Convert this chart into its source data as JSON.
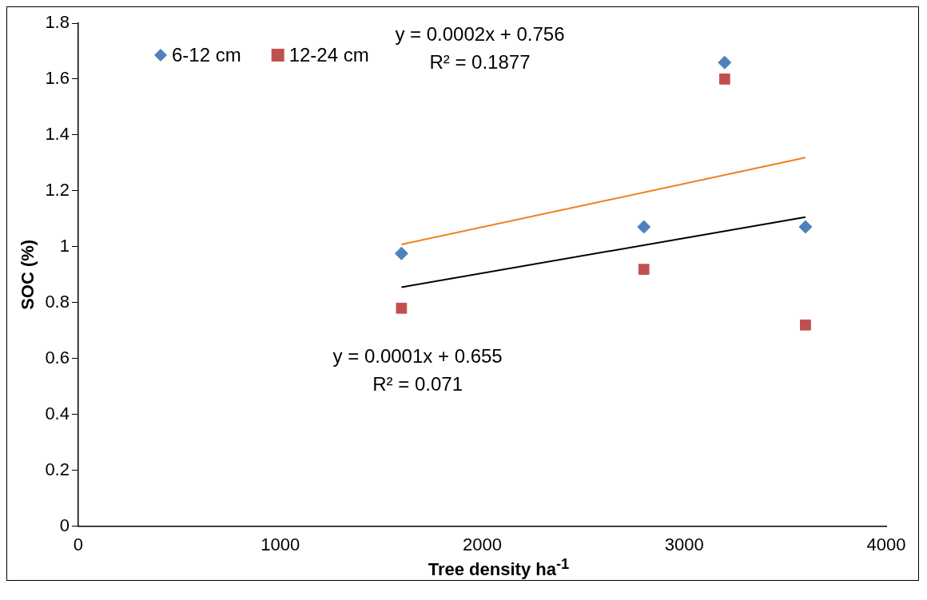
{
  "chart_data": {
    "type": "scatter",
    "xlabel": "Tree density ha$^{-1}$",
    "ylabel": "SOC (%)",
    "xlim": [
      0,
      4000
    ],
    "xticks": [
      0,
      1000,
      2000,
      3000,
      4000
    ],
    "ylim": [
      0,
      1.8
    ],
    "yticks": [
      0,
      0.2,
      0.4,
      0.6,
      0.8,
      1,
      1.2,
      1.4,
      1.6,
      1.8
    ],
    "grid": false,
    "legend": "top left",
    "series": [
      {
        "name": "6-12 cm",
        "color": "#4f81bd",
        "marker": "diamond",
        "x": [
          1600,
          2800,
          3200,
          3600
        ],
        "values": [
          0.976,
          1.071,
          1.659,
          1.071
        ]
      },
      {
        "name": "12-24 cm",
        "color": "#c0504d",
        "marker": "square",
        "x": [
          1600,
          2800,
          3200,
          3600
        ],
        "values": [
          0.78,
          0.919,
          1.6,
          0.72
        ]
      },
      {
        "type": "line",
        "color": "#f07f1a",
        "marker": "none",
        "line_style": "solid",
        "x": [
          1600,
          3600
        ],
        "values": [
          1.008,
          1.319
        ]
      },
      {
        "type": "line",
        "color": "#000000",
        "marker": "none",
        "line_style": "solid",
        "x": [
          1600,
          3600
        ],
        "values": [
          0.855,
          1.106
        ]
      }
    ],
    "annotations": [
      "y = 0.0002x + 0.756",
      "R² = 0.1877",
      "y = 0.0001x + 0.655",
      "R² = 0.071"
    ]
  }
}
